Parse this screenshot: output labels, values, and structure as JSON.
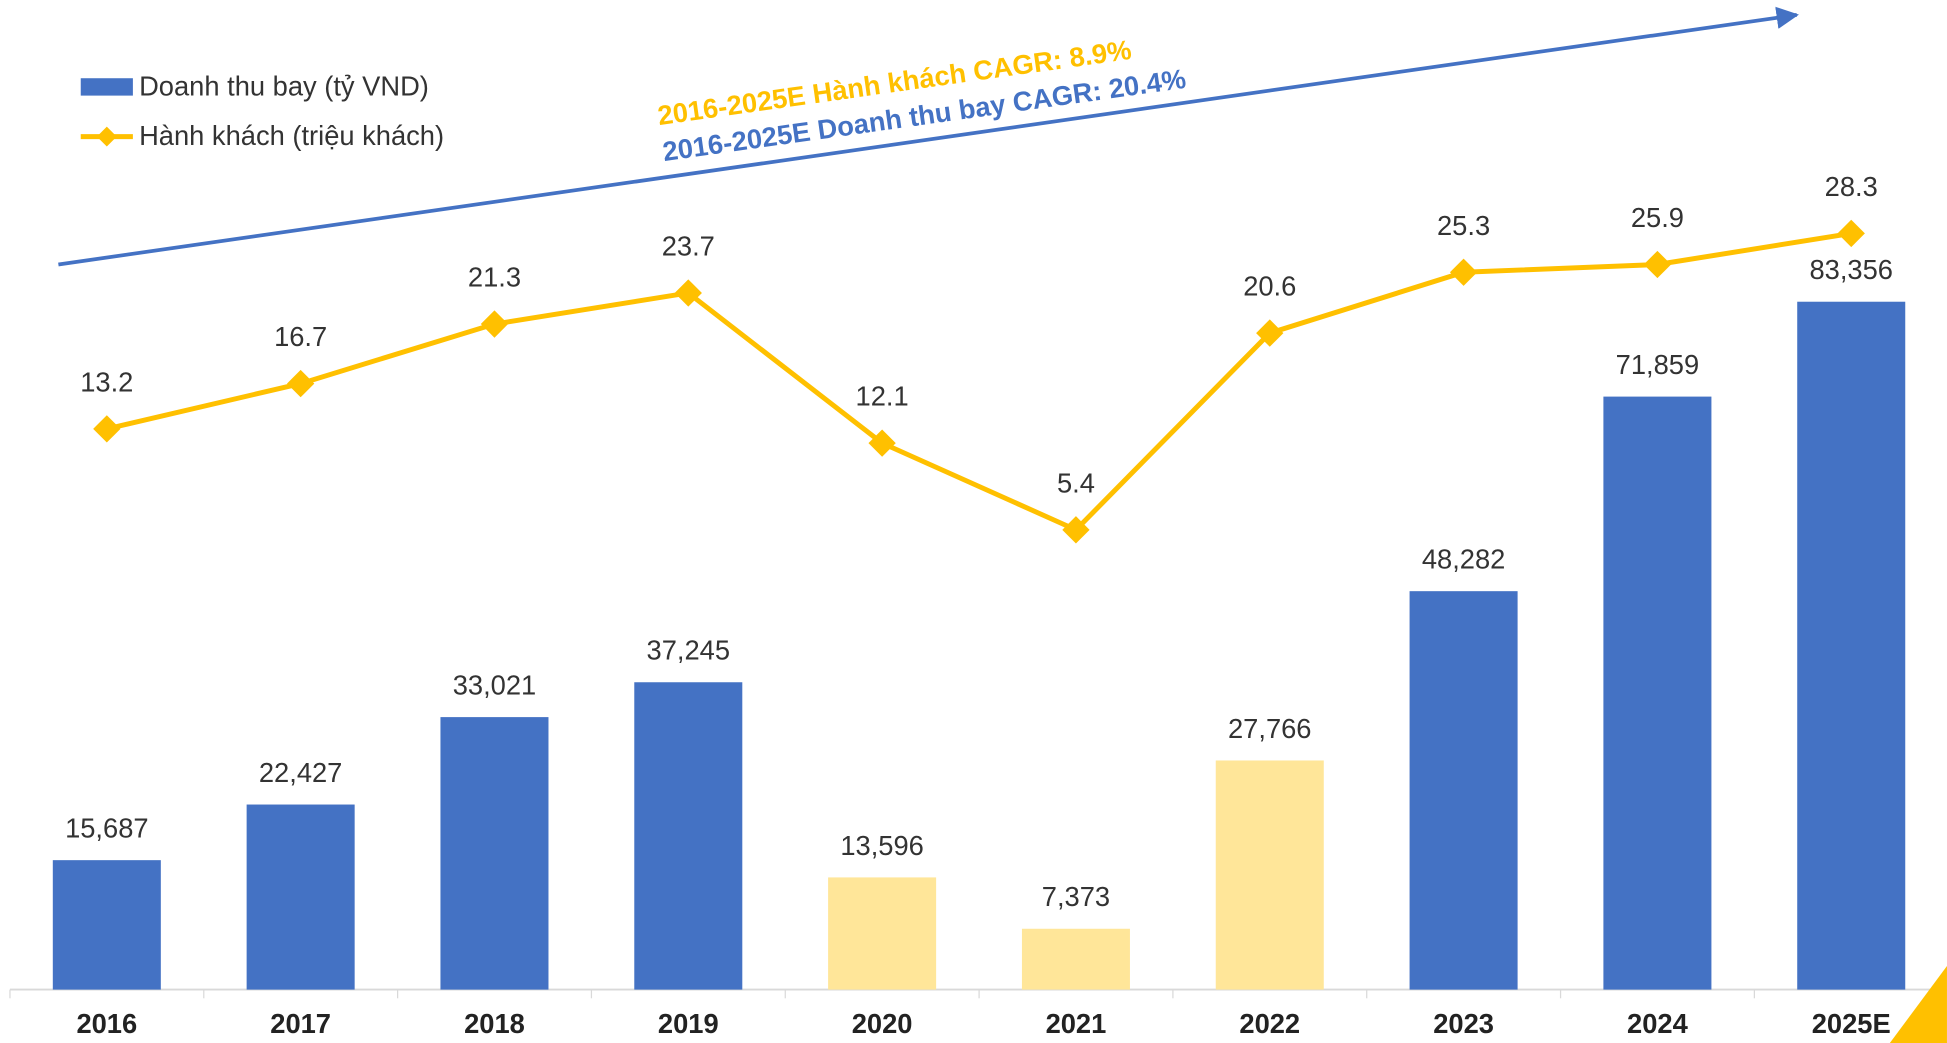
{
  "chart_data": {
    "type": "bar-line",
    "categories": [
      "2016",
      "2017",
      "2018",
      "2019",
      "2020",
      "2021",
      "2022",
      "2023",
      "2024",
      "2025E"
    ],
    "series": [
      {
        "name": "Doanh thu bay (tỷ VND)",
        "type": "bar",
        "color": "#4472c4",
        "colors": [
          "#4472c4",
          "#4472c4",
          "#4472c4",
          "#4472c4",
          "#ffe699",
          "#ffe699",
          "#ffe699",
          "#4472c4",
          "#4472c4",
          "#4472c4"
        ],
        "values": [
          15687,
          22427,
          33021,
          37245,
          13596,
          7373,
          27766,
          48282,
          71859,
          83356
        ],
        "value_labels": [
          "15,687",
          "22,427",
          "33,021",
          "37,245",
          "13,596",
          "7,373",
          "27,766",
          "48,282",
          "71,859",
          "83,356"
        ]
      },
      {
        "name": "Hành khách (triệu khách)",
        "type": "line",
        "axis": "y2",
        "color": "#ffc000",
        "values": [
          13.2,
          16.7,
          21.3,
          23.7,
          12.1,
          5.4,
          20.6,
          25.3,
          25.9,
          28.3
        ]
      }
    ],
    "annotations": [
      {
        "text": "2016-2025E Hành khách CAGR: 8.9%",
        "color": "#ffc000"
      },
      {
        "text": "2016-2025E Doanh thu bay CAGR: 20.4%",
        "color": "#4472c4"
      }
    ]
  }
}
